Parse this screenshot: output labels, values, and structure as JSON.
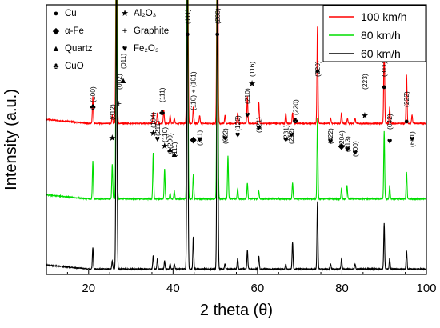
{
  "chart_data": {
    "type": "line",
    "xlabel": "2 theta (θ)",
    "ylabel": "Intensity (a.u.)",
    "xlim": [
      10,
      100
    ],
    "x_ticks": [
      "20",
      "40",
      "60",
      "80",
      "100"
    ],
    "series": [
      {
        "name": "100 km/h",
        "color": "#ff0000",
        "baseline": 0.56,
        "peaks": [
          [
            21.0,
            0.1
          ],
          [
            25.6,
            0.03
          ],
          [
            26.6,
            1.05
          ],
          [
            35.3,
            0.04
          ],
          [
            36.3,
            0.04
          ],
          [
            37.8,
            0.05
          ],
          [
            39.3,
            0.03
          ],
          [
            40.3,
            0.02
          ],
          [
            43.4,
            1.1
          ],
          [
            44.8,
            0.06
          ],
          [
            46.3,
            0.03
          ],
          [
            50.5,
            1.1
          ],
          [
            52.3,
            0.03
          ],
          [
            55.3,
            0.04
          ],
          [
            57.6,
            0.1
          ],
          [
            60.3,
            0.08
          ],
          [
            66.7,
            0.04
          ],
          [
            68.3,
            0.04
          ],
          [
            74.2,
            0.36
          ],
          [
            77.3,
            0.02
          ],
          [
            79.9,
            0.04
          ],
          [
            81.3,
            0.02
          ],
          [
            83.1,
            0.02
          ],
          [
            90.0,
            0.32
          ],
          [
            91.3,
            0.06
          ],
          [
            95.3,
            0.18
          ],
          [
            96.6,
            0.03
          ]
        ]
      },
      {
        "name": "80 km/h",
        "color": "#00dd00",
        "baseline": 0.28,
        "peaks": [
          [
            21.0,
            0.14
          ],
          [
            25.6,
            0.13
          ],
          [
            26.6,
            1.05
          ],
          [
            35.3,
            0.17
          ],
          [
            38.0,
            0.11
          ],
          [
            39.3,
            0.02
          ],
          [
            40.3,
            0.03
          ],
          [
            43.4,
            1.1
          ],
          [
            44.8,
            0.09
          ],
          [
            50.5,
            1.1
          ],
          [
            53.0,
            0.16
          ],
          [
            55.3,
            0.04
          ],
          [
            57.6,
            0.06
          ],
          [
            60.3,
            0.03
          ],
          [
            68.3,
            0.06
          ],
          [
            74.2,
            0.3
          ],
          [
            79.9,
            0.04
          ],
          [
            81.2,
            0.05
          ],
          [
            90.0,
            0.25
          ],
          [
            91.3,
            0.05
          ],
          [
            95.3,
            0.1
          ]
        ]
      },
      {
        "name": "60 km/h",
        "color": "#000000",
        "baseline": 0.02,
        "peaks": [
          [
            21.0,
            0.08
          ],
          [
            25.6,
            0.03
          ],
          [
            26.6,
            1.05
          ],
          [
            35.3,
            0.05
          ],
          [
            36.3,
            0.04
          ],
          [
            38.0,
            0.03
          ],
          [
            39.3,
            0.02
          ],
          [
            40.3,
            0.02
          ],
          [
            43.4,
            1.1
          ],
          [
            44.8,
            0.12
          ],
          [
            50.5,
            1.1
          ],
          [
            52.3,
            0.02
          ],
          [
            55.3,
            0.04
          ],
          [
            57.6,
            0.07
          ],
          [
            60.3,
            0.05
          ],
          [
            66.7,
            0.02
          ],
          [
            68.3,
            0.1
          ],
          [
            74.2,
            0.25
          ],
          [
            77.3,
            0.02
          ],
          [
            79.9,
            0.04
          ],
          [
            83.1,
            0.02
          ],
          [
            90.0,
            0.17
          ],
          [
            91.3,
            0.04
          ],
          [
            95.3,
            0.07
          ]
        ]
      }
    ],
    "annotations": [
      {
        "text": "(100)",
        "x": 21.0,
        "symbol": "♣"
      },
      {
        "text": "(012)",
        "x": 25.6,
        "symbol": "★"
      },
      {
        "text": "(002)",
        "x": 27.2,
        "symbol": "+"
      },
      {
        "text": "(011)",
        "x": 28.2,
        "symbol": "▲"
      },
      {
        "text": "(104)",
        "x": 35.3,
        "symbol": "★"
      },
      {
        "text": "(111)",
        "x": 37.4,
        "symbol": "♣"
      },
      {
        "text": "(211)",
        "x": 36.3,
        "symbol": "♥"
      },
      {
        "text": "(110)",
        "x": 38.0,
        "symbol": "★"
      },
      {
        "text": "(200)",
        "x": 39.3,
        "symbol": "♣"
      },
      {
        "text": "(111)",
        "x": 40.3,
        "symbol": "▲"
      },
      {
        "text": "(111)",
        "x": 43.4,
        "symbol": "●"
      },
      {
        "text": "(110) + (101)",
        "x": 44.8,
        "symbol": "◆"
      },
      {
        "text": "(311)",
        "x": 46.3,
        "symbol": "♥"
      },
      {
        "text": "(200)",
        "x": 50.5,
        "symbol": "●"
      },
      {
        "text": "(022)",
        "x": 52.3,
        "symbol": "♥"
      },
      {
        "text": "(122)",
        "x": 55.3,
        "symbol": "♥"
      },
      {
        "text": "(210)",
        "x": 57.6,
        "symbol": "♥"
      },
      {
        "text": "(116)",
        "x": 58.7,
        "symbol": "★"
      },
      {
        "text": "(121)",
        "x": 60.3,
        "symbol": "♥"
      },
      {
        "text": "(231)",
        "x": 66.7,
        "symbol": "♥"
      },
      {
        "text": "(212)",
        "x": 68.0,
        "symbol": "♥"
      },
      {
        "text": "(220)",
        "x": 69.0,
        "symbol": "♣"
      },
      {
        "text": "(220)",
        "x": 74.2,
        "symbol": "●"
      },
      {
        "text": "(422)",
        "x": 77.3,
        "symbol": "♥"
      },
      {
        "text": "(204)",
        "x": 79.9,
        "symbol": "◆"
      },
      {
        "text": "(313)",
        "x": 81.3,
        "symbol": "♥"
      },
      {
        "text": "(400)",
        "x": 83.1,
        "symbol": "♥"
      },
      {
        "text": "(223)",
        "x": 85.4,
        "symbol": "★"
      },
      {
        "text": "(311)",
        "x": 90.0,
        "symbol": "●"
      },
      {
        "text": "(042)",
        "x": 91.3,
        "symbol": "♥"
      },
      {
        "text": "(222)",
        "x": 95.3,
        "symbol": "●"
      },
      {
        "text": "(621)",
        "x": 96.6,
        "symbol": "♥"
      }
    ],
    "phase_key": [
      {
        "symbol": "●",
        "label": "Cu"
      },
      {
        "symbol": "◆",
        "label": "α-Fe"
      },
      {
        "symbol": "▲",
        "label": "Quartz"
      },
      {
        "symbol": "♣",
        "label": "CuO"
      },
      {
        "symbol": "★",
        "label": "Al₂O₃"
      },
      {
        "symbol": "+",
        "label": "Graphite"
      },
      {
        "symbol": "♥",
        "label": "Fe₂O₃"
      }
    ],
    "legend_position": "top-right",
    "grid": false
  }
}
